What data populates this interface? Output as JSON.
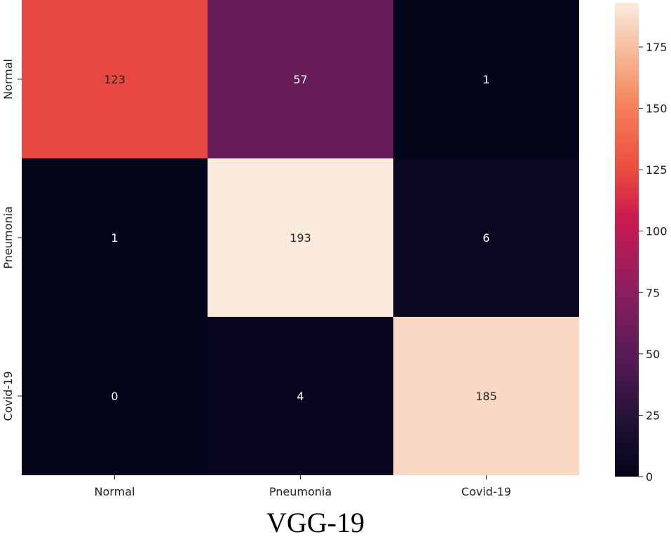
{
  "caption": "VGG-19",
  "chart_data": {
    "type": "heatmap",
    "row_labels": [
      "Normal",
      "Pneumonia",
      "Covid-19"
    ],
    "col_labels": [
      "Normal",
      "Pneumonia",
      "Covid-19"
    ],
    "matrix": [
      [
        123,
        57,
        1
      ],
      [
        1,
        193,
        6
      ],
      [
        0,
        4,
        185
      ]
    ],
    "colorbar": {
      "range": [
        0,
        193
      ],
      "ticks": [
        0,
        25,
        50,
        75,
        100,
        125,
        150,
        175
      ],
      "colormap": "rocket"
    },
    "title": "",
    "xlabel": "",
    "ylabel": ""
  }
}
